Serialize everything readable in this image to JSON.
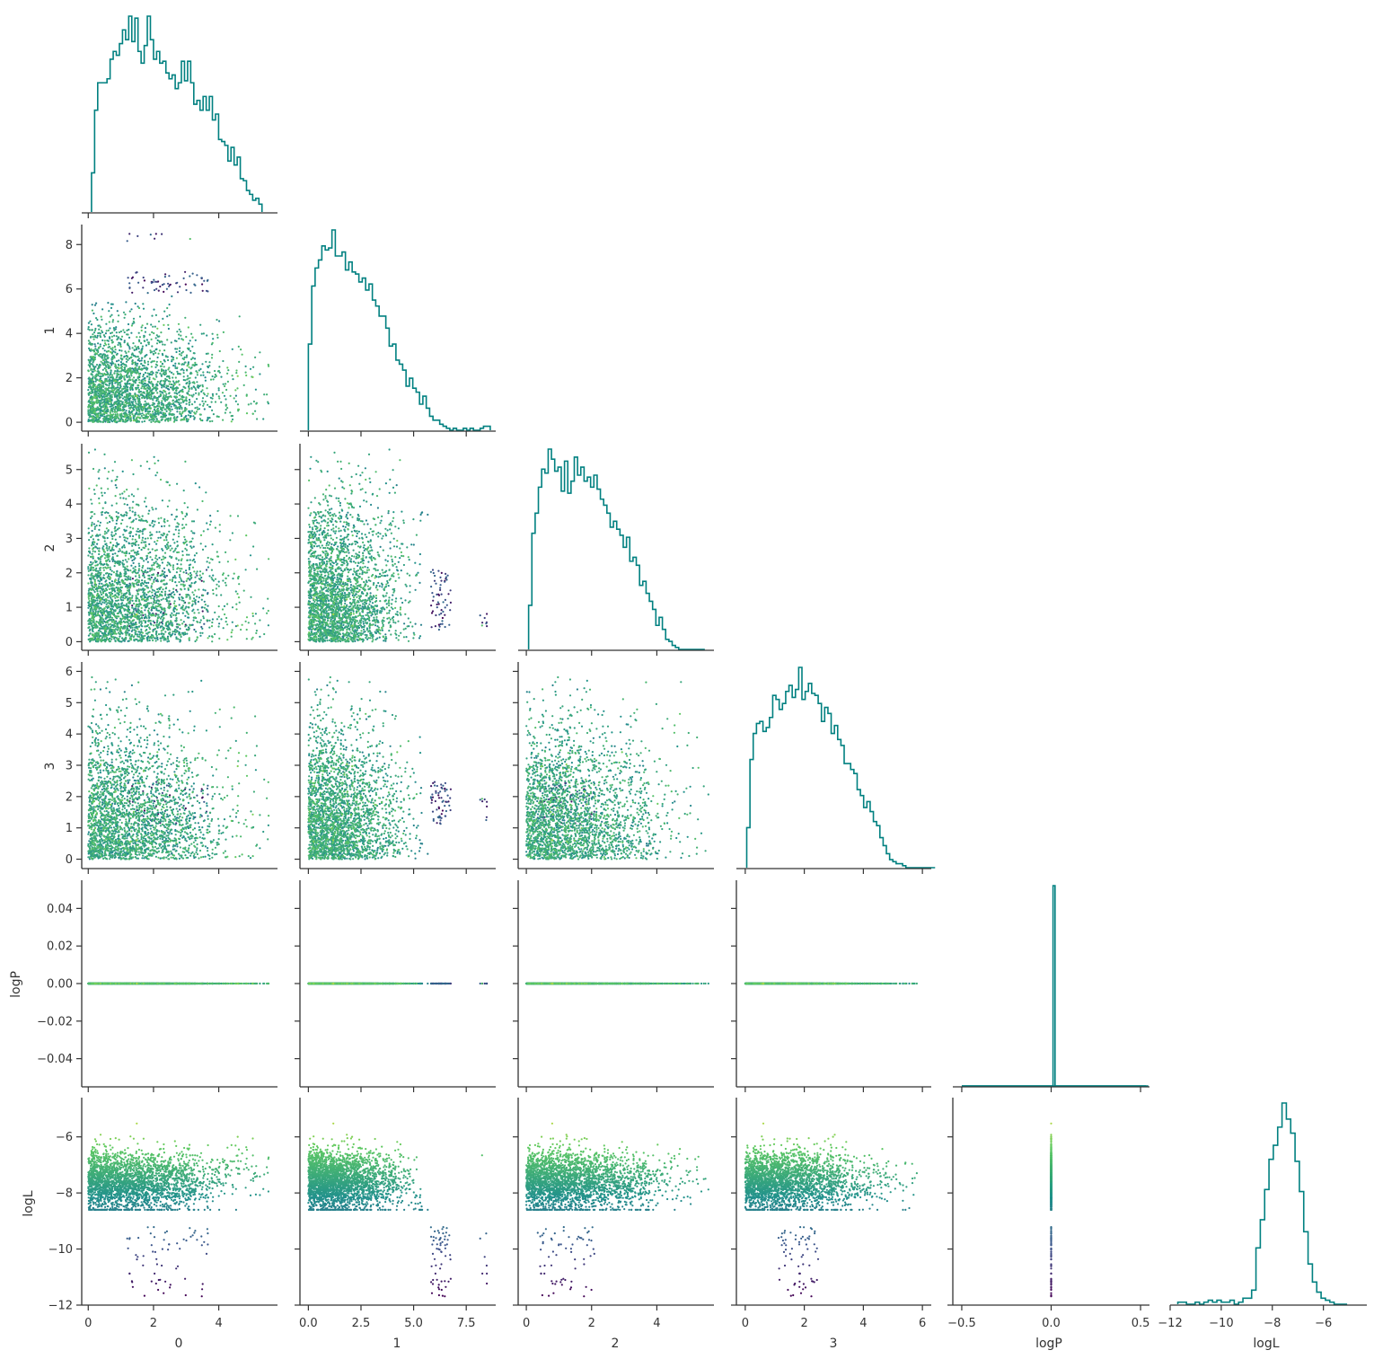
{
  "chart_data": {
    "type": "corner",
    "variables": [
      "0",
      "1",
      "2",
      "3",
      "logP",
      "logL"
    ],
    "color_variable": "logL",
    "colormap": "viridis",
    "hist_color": "#008080",
    "colormap_stops": [
      "#440154",
      "#3b528b",
      "#21918c",
      "#5ec962",
      "#fde725"
    ],
    "axes": {
      "0": {
        "range": [
          -0.2,
          5.8
        ],
        "ticks": [
          0,
          2,
          4
        ],
        "tick_labels": [
          "0",
          "2",
          "4"
        ]
      },
      "1": {
        "range": [
          -0.4,
          8.9
        ],
        "ticks": [
          0,
          2,
          4,
          6,
          8
        ],
        "tick_labels": [
          "0",
          "2",
          "4",
          "6",
          "8"
        ],
        "x_ticks": [
          0,
          2.5,
          5.0,
          7.5
        ],
        "x_tick_labels": [
          "0.0",
          "2.5",
          "5.0",
          "7.5"
        ]
      },
      "2": {
        "range": [
          -0.25,
          5.75
        ],
        "ticks": [
          0,
          1,
          2,
          3,
          4,
          5
        ],
        "tick_labels": [
          "0",
          "1",
          "2",
          "3",
          "4",
          "5"
        ],
        "x_ticks": [
          0,
          2,
          4
        ],
        "x_tick_labels": [
          "0",
          "2",
          "4"
        ]
      },
      "3": {
        "range": [
          -0.3,
          6.3
        ],
        "ticks": [
          0,
          1,
          2,
          3,
          4,
          5,
          6
        ],
        "tick_labels": [
          "0",
          "1",
          "2",
          "3",
          "4",
          "5",
          "6"
        ],
        "x_ticks": [
          0,
          2,
          4,
          6
        ],
        "x_tick_labels": [
          "0",
          "2",
          "4",
          "6"
        ]
      },
      "logP": {
        "range": [
          -0.055,
          0.055
        ],
        "ticks": [
          -0.04,
          -0.02,
          0,
          0.02,
          0.04
        ],
        "tick_labels": [
          "−0.04",
          "−0.02",
          "0.00",
          "0.02",
          "0.04"
        ],
        "x_range": [
          -0.55,
          0.55
        ],
        "x_ticks": [
          -0.5,
          0,
          0.5
        ],
        "x_tick_labels": [
          "−0.5",
          "0.0",
          "0.5"
        ]
      },
      "logL": {
        "range": [
          -12.0,
          -4.6
        ],
        "ticks": [
          -12,
          -10,
          -8,
          -6
        ],
        "tick_labels": [
          "−12",
          "−10",
          "−8",
          "−6"
        ],
        "x_range": [
          -12.0,
          -4.3
        ],
        "x_ticks": [
          -12,
          -10,
          -8,
          -6
        ],
        "x_tick_labels": [
          "−12",
          "−10",
          "−8",
          "−6"
        ]
      }
    },
    "histograms": {
      "0": {
        "edges_start": 0.1,
        "bin_width": 0.095,
        "heights": [
          0.2,
          0.52,
          0.66,
          0.66,
          0.66,
          0.68,
          0.78,
          0.82,
          0.8,
          0.86,
          0.93,
          0.88,
          1.0,
          0.87,
          0.99,
          0.82,
          0.76,
          0.85,
          1.0,
          0.88,
          0.78,
          0.82,
          0.76,
          0.77,
          0.71,
          0.68,
          0.7,
          0.63,
          0.66,
          0.77,
          0.67,
          0.77,
          0.66,
          0.55,
          0.57,
          0.52,
          0.59,
          0.52,
          0.59,
          0.47,
          0.5,
          0.37,
          0.36,
          0.34,
          0.26,
          0.33,
          0.24,
          0.28,
          0.17,
          0.16,
          0.11,
          0.09,
          0.06,
          0.07,
          0.04
        ]
      },
      "1": {
        "edges_start": 0.0,
        "bin_width": 0.16,
        "heights": [
          0.43,
          0.72,
          0.81,
          0.85,
          0.92,
          0.9,
          0.91,
          1.0,
          0.87,
          0.87,
          0.89,
          0.8,
          0.84,
          0.79,
          0.78,
          0.74,
          0.76,
          0.7,
          0.73,
          0.65,
          0.62,
          0.57,
          0.57,
          0.51,
          0.42,
          0.43,
          0.35,
          0.33,
          0.3,
          0.22,
          0.26,
          0.21,
          0.19,
          0.13,
          0.17,
          0.11,
          0.07,
          0.05,
          0.05,
          0.03,
          0.02,
          0.01,
          0.0,
          0.01,
          0.0,
          0.0,
          0.01,
          0.0,
          0.01,
          0.0,
          0.0,
          0.01,
          0.02,
          0.02
        ]
      },
      "2": {
        "edges_start": 0.07,
        "bin_width": 0.1,
        "heights": [
          0.22,
          0.58,
          0.68,
          0.81,
          0.9,
          0.88,
          1.0,
          0.95,
          0.89,
          0.91,
          0.79,
          0.94,
          0.78,
          0.84,
          0.96,
          0.87,
          0.91,
          0.84,
          0.86,
          0.81,
          0.87,
          0.8,
          0.75,
          0.72,
          0.68,
          0.61,
          0.64,
          0.6,
          0.57,
          0.51,
          0.56,
          0.44,
          0.46,
          0.42,
          0.32,
          0.34,
          0.28,
          0.24,
          0.2,
          0.12,
          0.16,
          0.1,
          0.05,
          0.04,
          0.02,
          0.01,
          0.0,
          0.0,
          0.0,
          0.0,
          0.0,
          0.0,
          0.0,
          0.0
        ]
      },
      "3": {
        "edges_start": 0.05,
        "bin_width": 0.11,
        "heights": [
          0.2,
          0.54,
          0.67,
          0.72,
          0.73,
          0.68,
          0.7,
          0.75,
          0.86,
          0.84,
          0.79,
          0.82,
          0.88,
          0.91,
          0.85,
          0.89,
          1.0,
          0.84,
          0.88,
          0.92,
          0.87,
          0.86,
          0.82,
          0.73,
          0.8,
          0.77,
          0.67,
          0.71,
          0.64,
          0.61,
          0.52,
          0.52,
          0.49,
          0.47,
          0.39,
          0.36,
          0.3,
          0.33,
          0.28,
          0.23,
          0.21,
          0.15,
          0.11,
          0.07,
          0.04,
          0.03,
          0.02,
          0.02,
          0.01,
          0.0,
          0.0,
          0.0,
          0.0,
          0.0,
          0.0,
          0.0,
          0.0,
          0.0
        ]
      },
      "logP": {
        "edges_start": -0.5,
        "bin_width": 0.0111,
        "heights": [
          0,
          0,
          0,
          0,
          0,
          0,
          0,
          0,
          0,
          0,
          0,
          0,
          0,
          0,
          0,
          0,
          0,
          0,
          0,
          0,
          0,
          0,
          0,
          0,
          0,
          0,
          0,
          0,
          0,
          0,
          0,
          0,
          0,
          0,
          0,
          0,
          0,
          0,
          0,
          0,
          0,
          0,
          0,
          0,
          0,
          0,
          1.0,
          0,
          0,
          0,
          0,
          0,
          0,
          0,
          0,
          0,
          0,
          0,
          0,
          0,
          0,
          0,
          0,
          0,
          0,
          0,
          0,
          0,
          0,
          0,
          0,
          0,
          0,
          0,
          0,
          0,
          0,
          0,
          0,
          0,
          0,
          0,
          0,
          0,
          0,
          0,
          0,
          0,
          0,
          0,
          0,
          0,
          0,
          0
        ]
      },
      "logL": {
        "edges_start": -11.7,
        "bin_width": 0.17,
        "heights": [
          0.01,
          0.01,
          0.0,
          0.0,
          0.01,
          0.0,
          0.01,
          0.02,
          0.01,
          0.02,
          0.01,
          0.01,
          0.02,
          0.0,
          0.01,
          0.03,
          0.03,
          0.07,
          0.28,
          0.42,
          0.57,
          0.72,
          0.79,
          0.88,
          1.0,
          0.92,
          0.85,
          0.71,
          0.56,
          0.36,
          0.2,
          0.11,
          0.06,
          0.03,
          0.02,
          0.01,
          0.0,
          0.0,
          0.0
        ]
      }
    },
    "xlabels": [
      "0",
      "1",
      "2",
      "3",
      "logP",
      "logL"
    ],
    "ylabels": [
      "1",
      "2",
      "3",
      "logP",
      "logL"
    ]
  }
}
